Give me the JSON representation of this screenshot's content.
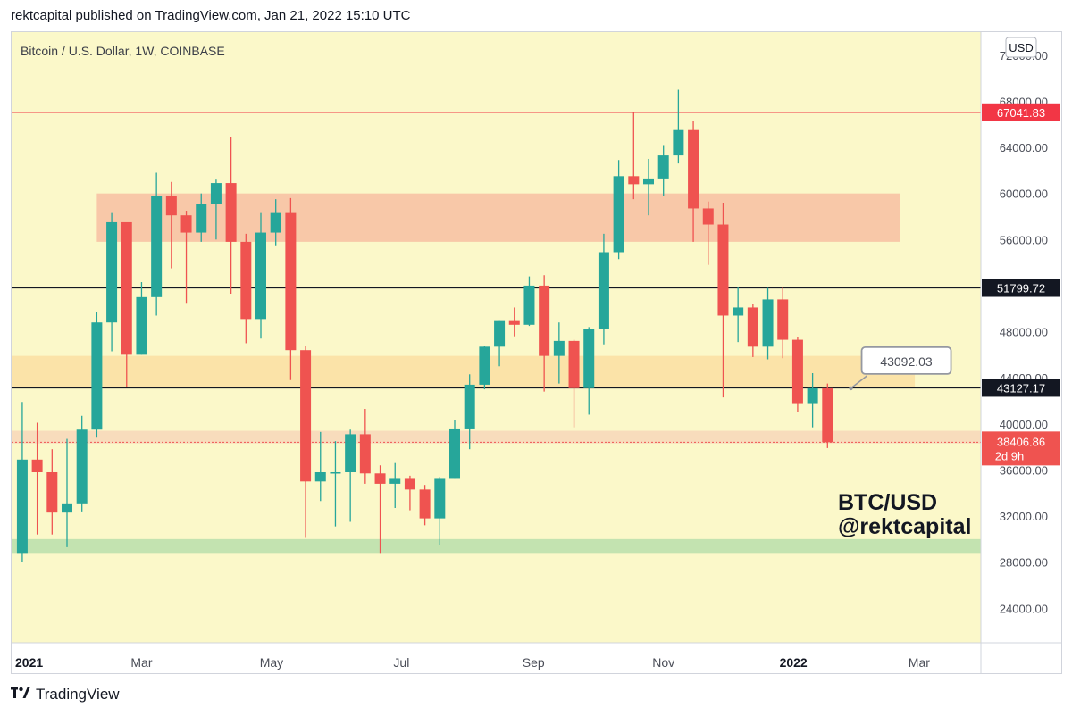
{
  "header": {
    "published_by": "rektcapital published on TradingView.com, Jan 21, 2022 15:10 UTC"
  },
  "footer": {
    "logo_icon": "tradingview-logo-icon",
    "brand": "TradingView"
  },
  "colors": {
    "background": "#fbf8c9",
    "bull": "#26a69a",
    "bear": "#ef5350",
    "red_zone": "#f8c8a8",
    "orange_zone": "#fbe3a8",
    "green_zone": "#c3e3b0",
    "line_red": "#f23645",
    "line_black": "#131722"
  },
  "chart_data": {
    "type": "candlestick",
    "title": "Bitcoin / U.S. Dollar, 1W, COINBASE",
    "currency_label": "USD",
    "ylim": [
      21000,
      74000
    ],
    "xlim": [
      "2020-12-30",
      "2022-03-30"
    ],
    "y_ticks": [
      24000,
      28000,
      32000,
      36000,
      40000,
      44000,
      48000,
      56000,
      60000,
      64000,
      68000,
      72000
    ],
    "y_tick_labels": [
      "24000.00",
      "28000.00",
      "32000.00",
      "36000.00",
      "40000.00",
      "44000.00",
      "48000.00",
      "56000.00",
      "60000.00",
      "64000.00",
      "68000.00",
      "72000.00"
    ],
    "x_tick_labels": [
      {
        "label": "2021",
        "date": "2021-01-01",
        "bold": true
      },
      {
        "label": "Mar",
        "date": "2021-03-01",
        "bold": false
      },
      {
        "label": "May",
        "date": "2021-05-01",
        "bold": false
      },
      {
        "label": "Jul",
        "date": "2021-07-01",
        "bold": false
      },
      {
        "label": "Sep",
        "date": "2021-09-01",
        "bold": false
      },
      {
        "label": "Nov",
        "date": "2021-11-01",
        "bold": false
      },
      {
        "label": "2022",
        "date": "2022-01-01",
        "bold": true
      },
      {
        "label": "Mar",
        "date": "2022-03-01",
        "bold": false
      }
    ],
    "candles": [
      {
        "date": "2021-01-04",
        "open": 28800,
        "high": 41900,
        "low": 28000,
        "close": 36900
      },
      {
        "date": "2021-01-11",
        "open": 36900,
        "high": 40100,
        "low": 30400,
        "close": 35800
      },
      {
        "date": "2021-01-18",
        "open": 35800,
        "high": 37800,
        "low": 30400,
        "close": 32300
      },
      {
        "date": "2021-01-25",
        "open": 32300,
        "high": 38700,
        "low": 29300,
        "close": 33100
      },
      {
        "date": "2021-02-01",
        "open": 33100,
        "high": 40700,
        "low": 32400,
        "close": 39500
      },
      {
        "date": "2021-02-08",
        "open": 39500,
        "high": 49700,
        "low": 38800,
        "close": 48800
      },
      {
        "date": "2021-02-15",
        "open": 48800,
        "high": 58300,
        "low": 46300,
        "close": 57500
      },
      {
        "date": "2021-02-22",
        "open": 57500,
        "high": 57500,
        "low": 43200,
        "close": 46000
      },
      {
        "date": "2021-03-01",
        "open": 46000,
        "high": 52300,
        "low": 46000,
        "close": 51000
      },
      {
        "date": "2021-03-08",
        "open": 51000,
        "high": 61800,
        "low": 49400,
        "close": 59800
      },
      {
        "date": "2021-03-15",
        "open": 59800,
        "high": 61000,
        "low": 53500,
        "close": 58100
      },
      {
        "date": "2021-03-22",
        "open": 58100,
        "high": 58500,
        "low": 50500,
        "close": 56600
      },
      {
        "date": "2021-03-29",
        "open": 56600,
        "high": 60000,
        "low": 55800,
        "close": 59100
      },
      {
        "date": "2021-04-05",
        "open": 59100,
        "high": 61200,
        "low": 56000,
        "close": 60900
      },
      {
        "date": "2021-04-12",
        "open": 60900,
        "high": 64900,
        "low": 51300,
        "close": 55800
      },
      {
        "date": "2021-04-19",
        "open": 55800,
        "high": 56500,
        "low": 47000,
        "close": 49100
      },
      {
        "date": "2021-04-26",
        "open": 49100,
        "high": 58300,
        "low": 47400,
        "close": 56600
      },
      {
        "date": "2021-05-03",
        "open": 56600,
        "high": 59500,
        "low": 55500,
        "close": 58300
      },
      {
        "date": "2021-05-10",
        "open": 58300,
        "high": 59600,
        "low": 43800,
        "close": 46400
      },
      {
        "date": "2021-05-17",
        "open": 46400,
        "high": 46800,
        "low": 30100,
        "close": 35000
      },
      {
        "date": "2021-05-24",
        "open": 35000,
        "high": 39300,
        "low": 33300,
        "close": 35800
      },
      {
        "date": "2021-05-31",
        "open": 35800,
        "high": 38500,
        "low": 31100,
        "close": 35800
      },
      {
        "date": "2021-06-07",
        "open": 35800,
        "high": 39500,
        "low": 31500,
        "close": 39100
      },
      {
        "date": "2021-06-14",
        "open": 39100,
        "high": 41300,
        "low": 34800,
        "close": 35700
      },
      {
        "date": "2021-06-21",
        "open": 35700,
        "high": 36400,
        "low": 28800,
        "close": 34800
      },
      {
        "date": "2021-06-28",
        "open": 34800,
        "high": 36600,
        "low": 32700,
        "close": 35300
      },
      {
        "date": "2021-07-05",
        "open": 35300,
        "high": 35500,
        "low": 32500,
        "close": 34300
      },
      {
        "date": "2021-07-12",
        "open": 34300,
        "high": 34700,
        "low": 31200,
        "close": 31800
      },
      {
        "date": "2021-07-19",
        "open": 31800,
        "high": 35400,
        "low": 29500,
        "close": 35300
      },
      {
        "date": "2021-07-26",
        "open": 35300,
        "high": 40300,
        "low": 35300,
        "close": 39600
      },
      {
        "date": "2021-08-02",
        "open": 39600,
        "high": 44300,
        "low": 37800,
        "close": 43400
      },
      {
        "date": "2021-08-09",
        "open": 43400,
        "high": 46800,
        "low": 43000,
        "close": 46700
      },
      {
        "date": "2021-08-16",
        "open": 46700,
        "high": 49000,
        "low": 45000,
        "close": 49000
      },
      {
        "date": "2021-08-23",
        "open": 49000,
        "high": 50100,
        "low": 47600,
        "close": 48600
      },
      {
        "date": "2021-08-30",
        "open": 48600,
        "high": 52800,
        "low": 48500,
        "close": 52000
      },
      {
        "date": "2021-09-06",
        "open": 52000,
        "high": 52900,
        "low": 42800,
        "close": 45900
      },
      {
        "date": "2021-09-13",
        "open": 45900,
        "high": 48800,
        "low": 43500,
        "close": 47200
      },
      {
        "date": "2021-09-20",
        "open": 47200,
        "high": 47300,
        "low": 39700,
        "close": 43100
      },
      {
        "date": "2021-09-27",
        "open": 43100,
        "high": 48400,
        "low": 40800,
        "close": 48200
      },
      {
        "date": "2021-10-04",
        "open": 48200,
        "high": 56500,
        "low": 46900,
        "close": 54900
      },
      {
        "date": "2021-10-11",
        "open": 54900,
        "high": 62900,
        "low": 54300,
        "close": 61500
      },
      {
        "date": "2021-10-18",
        "open": 61500,
        "high": 67000,
        "low": 59500,
        "close": 60800
      },
      {
        "date": "2021-10-25",
        "open": 60800,
        "high": 63000,
        "low": 58100,
        "close": 61300
      },
      {
        "date": "2021-11-01",
        "open": 61300,
        "high": 64200,
        "low": 59800,
        "close": 63300
      },
      {
        "date": "2021-11-08",
        "open": 63300,
        "high": 69000,
        "low": 62600,
        "close": 65500
      },
      {
        "date": "2021-11-15",
        "open": 65500,
        "high": 66300,
        "low": 55800,
        "close": 58700
      },
      {
        "date": "2021-11-22",
        "open": 58700,
        "high": 59300,
        "low": 53800,
        "close": 57300
      },
      {
        "date": "2021-11-29",
        "open": 57300,
        "high": 59200,
        "low": 42300,
        "close": 49400
      },
      {
        "date": "2021-12-06",
        "open": 49400,
        "high": 51900,
        "low": 47100,
        "close": 50100
      },
      {
        "date": "2021-12-13",
        "open": 50100,
        "high": 50400,
        "low": 45800,
        "close": 46700
      },
      {
        "date": "2021-12-20",
        "open": 46700,
        "high": 51800,
        "low": 45600,
        "close": 50800
      },
      {
        "date": "2021-12-27",
        "open": 50800,
        "high": 51900,
        "low": 45700,
        "close": 47300
      },
      {
        "date": "2022-01-03",
        "open": 47300,
        "high": 47500,
        "low": 41000,
        "close": 41800
      },
      {
        "date": "2022-01-10",
        "open": 41800,
        "high": 44400,
        "low": 39700,
        "close": 43100
      },
      {
        "date": "2022-01-17",
        "open": 43100,
        "high": 43500,
        "low": 37900,
        "close": 38406.86
      }
    ],
    "zones": [
      {
        "name": "resistance-zone-red",
        "y_from": 55800,
        "y_to": 60000,
        "x_from": "2021-02-08",
        "x_to": "2022-02-20",
        "color": "#f8c8a8"
      },
      {
        "name": "zone-orange",
        "y_from": 43100,
        "y_to": 45900,
        "x_from": "2020-12-30",
        "x_to": "2022-02-27",
        "color": "#fbe3a8"
      },
      {
        "name": "zone-peach",
        "y_from": 38300,
        "y_to": 39400,
        "x_from": "2020-12-30",
        "x_to": "2022-03-30",
        "color": "#f8dcbc"
      },
      {
        "name": "support-zone-green",
        "y_from": 28800,
        "y_to": 30000,
        "x_from": "2020-12-30",
        "x_to": "2022-03-30",
        "color": "#c3e3b0"
      }
    ],
    "hlines": [
      {
        "name": "ath-line",
        "y": 67041.83,
        "label": "67041.83",
        "color": "#f23645"
      },
      {
        "name": "level-line-51799",
        "y": 51799.72,
        "label": "51799.72",
        "color": "#131722"
      },
      {
        "name": "level-line-43127",
        "y": 43127.17,
        "label": "43127.17",
        "color": "#131722"
      }
    ],
    "current_price": {
      "value": 38406.86,
      "label": "38406.86",
      "countdown": "2d 9h",
      "color": "#ef5350"
    },
    "annotations": [
      {
        "text": "43092.03",
        "date": "2022-01-28",
        "y": 43092.03
      },
      {
        "text": "BTC/USD",
        "big": true
      },
      {
        "text": "@rektcapital",
        "big": true
      }
    ]
  }
}
